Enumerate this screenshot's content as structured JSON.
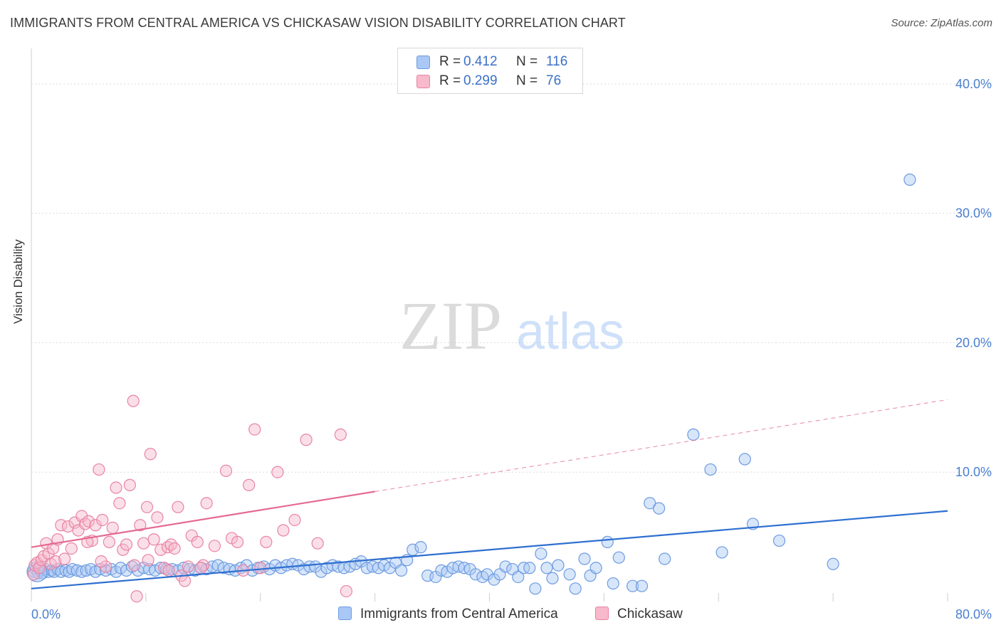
{
  "title": "IMMIGRANTS FROM CENTRAL AMERICA VS CHICKASAW VISION DISABILITY CORRELATION CHART",
  "source": "Source: ZipAtlas.com",
  "watermark": {
    "zip": "ZIP",
    "atlas": "atlas"
  },
  "legend": {
    "rows": [
      {
        "r_label": "R =",
        "r_value": "0.412",
        "n_label": "N =",
        "n_value": "116",
        "color": "#a9c8f5",
        "border": "#6d9be0"
      },
      {
        "r_label": "R =",
        "r_value": "0.299",
        "n_label": "N =",
        "n_value": "76",
        "color": "#f7b9cb",
        "border": "#e884a4"
      }
    ]
  },
  "bottom_legend": {
    "blue": "Immigrants from Central America",
    "pink": "Chickasaw"
  },
  "chart_data": {
    "type": "scatter",
    "title": "IMMIGRANTS FROM CENTRAL AMERICA VS CHICKASAW VISION DISABILITY CORRELATION CHART",
    "xlabel": "",
    "ylabel": "Vision Disability",
    "xlim": [
      0,
      80
    ],
    "ylim": [
      0,
      42
    ],
    "x_tick_labels": [
      "0.0%",
      "80.0%"
    ],
    "y_ticks": [
      10,
      20,
      30,
      40
    ],
    "y_tick_labels": [
      "10.0%",
      "20.0%",
      "30.0%",
      "40.0%"
    ],
    "grid": true,
    "legend_position": "top-center",
    "series": [
      {
        "name": "Immigrants from Central America",
        "color": "#6d9be0",
        "fill": "#a9c8f5",
        "trend": {
          "x0": 0,
          "y0": 1.0,
          "x1": 80,
          "y1": 7.0,
          "style": "solid",
          "color": "#2e6fd0"
        },
        "points": [
          [
            0.2,
            2.3
          ],
          [
            0.4,
            2.5
          ],
          [
            0.6,
            2.2
          ],
          [
            0.8,
            2.4
          ],
          [
            1.0,
            2.2
          ],
          [
            1.2,
            2.5
          ],
          [
            1.5,
            2.3
          ],
          [
            1.8,
            2.4
          ],
          [
            2.0,
            2.3
          ],
          [
            2.3,
            2.5
          ],
          [
            2.6,
            2.3
          ],
          [
            3.0,
            2.4
          ],
          [
            3.3,
            2.3
          ],
          [
            3.6,
            2.5
          ],
          [
            4.0,
            2.4
          ],
          [
            4.4,
            2.3
          ],
          [
            4.8,
            2.4
          ],
          [
            5.2,
            2.5
          ],
          [
            5.6,
            2.3
          ],
          [
            6.0,
            2.5
          ],
          [
            6.5,
            2.4
          ],
          [
            7.0,
            2.5
          ],
          [
            7.4,
            2.3
          ],
          [
            7.8,
            2.6
          ],
          [
            8.3,
            2.4
          ],
          [
            8.8,
            2.7
          ],
          [
            9.3,
            2.4
          ],
          [
            9.8,
            2.6
          ],
          [
            10.3,
            2.5
          ],
          [
            10.8,
            2.4
          ],
          [
            11.3,
            2.6
          ],
          [
            11.8,
            2.5
          ],
          [
            12.3,
            2.5
          ],
          [
            12.8,
            2.4
          ],
          [
            13.3,
            2.6
          ],
          [
            13.8,
            2.5
          ],
          [
            14.3,
            2.4
          ],
          [
            14.8,
            2.6
          ],
          [
            15.3,
            2.5
          ],
          [
            15.8,
            2.7
          ],
          [
            16.3,
            2.8
          ],
          [
            16.8,
            2.6
          ],
          [
            17.3,
            2.5
          ],
          [
            17.8,
            2.4
          ],
          [
            18.3,
            2.6
          ],
          [
            18.8,
            2.8
          ],
          [
            19.3,
            2.4
          ],
          [
            19.8,
            2.6
          ],
          [
            20.3,
            2.7
          ],
          [
            20.8,
            2.5
          ],
          [
            21.3,
            2.8
          ],
          [
            21.8,
            2.6
          ],
          [
            22.3,
            2.8
          ],
          [
            22.8,
            2.9
          ],
          [
            23.3,
            2.8
          ],
          [
            23.8,
            2.5
          ],
          [
            24.3,
            2.7
          ],
          [
            24.8,
            2.7
          ],
          [
            25.3,
            2.3
          ],
          [
            25.8,
            2.6
          ],
          [
            26.3,
            2.8
          ],
          [
            26.8,
            2.7
          ],
          [
            27.3,
            2.6
          ],
          [
            27.8,
            2.7
          ],
          [
            28.3,
            2.9
          ],
          [
            28.8,
            3.1
          ],
          [
            29.3,
            2.6
          ],
          [
            29.8,
            2.7
          ],
          [
            30.3,
            2.6
          ],
          [
            30.8,
            2.8
          ],
          [
            31.3,
            2.6
          ],
          [
            31.8,
            3.0
          ],
          [
            32.3,
            2.4
          ],
          [
            32.8,
            3.2
          ],
          [
            33.3,
            4.0
          ],
          [
            34.0,
            4.2
          ],
          [
            34.6,
            2.0
          ],
          [
            35.3,
            1.9
          ],
          [
            35.8,
            2.4
          ],
          [
            36.3,
            2.3
          ],
          [
            36.8,
            2.6
          ],
          [
            37.3,
            2.7
          ],
          [
            37.8,
            2.6
          ],
          [
            38.3,
            2.5
          ],
          [
            38.8,
            2.1
          ],
          [
            39.4,
            1.9
          ],
          [
            39.8,
            2.1
          ],
          [
            40.4,
            1.7
          ],
          [
            40.9,
            2.1
          ],
          [
            41.4,
            2.7
          ],
          [
            42.0,
            2.5
          ],
          [
            42.5,
            1.9
          ],
          [
            43.0,
            2.6
          ],
          [
            43.5,
            2.6
          ],
          [
            44.0,
            1.0
          ],
          [
            44.5,
            3.7
          ],
          [
            45.0,
            2.6
          ],
          [
            45.5,
            1.8
          ],
          [
            46.0,
            2.8
          ],
          [
            47.0,
            2.1
          ],
          [
            47.5,
            1.0
          ],
          [
            48.3,
            3.3
          ],
          [
            48.8,
            2.0
          ],
          [
            49.3,
            2.6
          ],
          [
            50.3,
            4.6
          ],
          [
            50.8,
            1.4
          ],
          [
            51.3,
            3.4
          ],
          [
            52.5,
            1.2
          ],
          [
            53.3,
            1.2
          ],
          [
            54.0,
            7.6
          ],
          [
            54.8,
            7.2
          ],
          [
            55.3,
            3.3
          ],
          [
            57.8,
            12.9
          ],
          [
            59.3,
            10.2
          ],
          [
            60.3,
            3.8
          ],
          [
            62.3,
            11.0
          ],
          [
            63.0,
            6.0
          ],
          [
            65.3,
            4.7
          ],
          [
            70.0,
            2.9
          ],
          [
            76.7,
            32.6
          ]
        ],
        "big_point": [
          0.5,
          2.3
        ]
      },
      {
        "name": "Chickasaw",
        "color": "#e884a4",
        "fill": "#f7b9cb",
        "trend": {
          "x0": 0,
          "y0": 4.2,
          "x1": 30,
          "y1": 8.5,
          "style": "solid",
          "color": "#e46a91",
          "dashed_to": {
            "x": 80,
            "y": 15.6
          }
        },
        "points": [
          [
            0.2,
            2.1
          ],
          [
            0.3,
            2.8
          ],
          [
            0.5,
            3.0
          ],
          [
            0.7,
            2.6
          ],
          [
            0.9,
            3.2
          ],
          [
            1.1,
            3.5
          ],
          [
            1.3,
            4.5
          ],
          [
            1.5,
            3.7
          ],
          [
            1.7,
            2.9
          ],
          [
            1.9,
            4.1
          ],
          [
            2.1,
            3.1
          ],
          [
            2.3,
            4.8
          ],
          [
            2.6,
            5.9
          ],
          [
            2.9,
            3.3
          ],
          [
            3.2,
            5.8
          ],
          [
            3.5,
            4.1
          ],
          [
            3.8,
            6.1
          ],
          [
            4.1,
            5.5
          ],
          [
            4.4,
            6.6
          ],
          [
            4.7,
            6.0
          ],
          [
            5.0,
            6.2
          ],
          [
            5.3,
            4.7
          ],
          [
            5.6,
            5.9
          ],
          [
            5.9,
            10.2
          ],
          [
            6.2,
            6.3
          ],
          [
            6.5,
            2.7
          ],
          [
            6.8,
            4.6
          ],
          [
            7.1,
            5.7
          ],
          [
            7.4,
            8.8
          ],
          [
            7.7,
            7.6
          ],
          [
            8.0,
            4.0
          ],
          [
            8.3,
            4.4
          ],
          [
            8.6,
            9.0
          ],
          [
            8.9,
            15.5
          ],
          [
            9.2,
            0.4
          ],
          [
            9.5,
            5.9
          ],
          [
            9.8,
            4.5
          ],
          [
            10.1,
            7.3
          ],
          [
            10.4,
            11.4
          ],
          [
            10.7,
            4.8
          ],
          [
            11.0,
            6.5
          ],
          [
            11.3,
            4.0
          ],
          [
            11.6,
            2.6
          ],
          [
            11.9,
            4.2
          ],
          [
            12.2,
            4.4
          ],
          [
            12.5,
            4.1
          ],
          [
            12.8,
            7.3
          ],
          [
            13.1,
            2.0
          ],
          [
            13.4,
            1.6
          ],
          [
            13.7,
            2.7
          ],
          [
            14.0,
            5.1
          ],
          [
            14.5,
            4.6
          ],
          [
            15.0,
            2.8
          ],
          [
            15.3,
            7.6
          ],
          [
            16.0,
            4.3
          ],
          [
            17.0,
            10.1
          ],
          [
            17.5,
            4.9
          ],
          [
            18.0,
            4.6
          ],
          [
            18.5,
            2.4
          ],
          [
            19.0,
            9.0
          ],
          [
            19.5,
            13.3
          ],
          [
            20.0,
            2.6
          ],
          [
            20.5,
            4.6
          ],
          [
            21.5,
            10.0
          ],
          [
            22.0,
            5.5
          ],
          [
            23.0,
            6.3
          ],
          [
            24.0,
            12.5
          ],
          [
            25.0,
            4.5
          ],
          [
            27.0,
            12.9
          ],
          [
            27.5,
            0.8
          ],
          [
            9.0,
            2.8
          ],
          [
            10.2,
            3.2
          ],
          [
            12.0,
            2.4
          ],
          [
            14.8,
            2.6
          ],
          [
            6.1,
            3.1
          ],
          [
            4.9,
            4.6
          ]
        ]
      }
    ]
  }
}
